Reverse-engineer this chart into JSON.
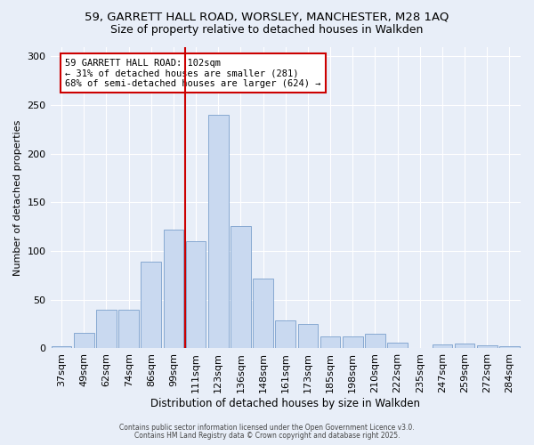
{
  "title_line1": "59, GARRETT HALL ROAD, WORSLEY, MANCHESTER, M28 1AQ",
  "title_line2": "Size of property relative to detached houses in Walkden",
  "xlabel": "Distribution of detached houses by size in Walkden",
  "ylabel": "Number of detached properties",
  "bar_labels": [
    "37sqm",
    "49sqm",
    "62sqm",
    "74sqm",
    "86sqm",
    "99sqm",
    "111sqm",
    "123sqm",
    "136sqm",
    "148sqm",
    "161sqm",
    "173sqm",
    "185sqm",
    "198sqm",
    "210sqm",
    "222sqm",
    "235sqm",
    "247sqm",
    "259sqm",
    "272sqm",
    "284sqm"
  ],
  "bar_values": [
    2,
    16,
    40,
    40,
    89,
    122,
    110,
    240,
    126,
    72,
    29,
    25,
    12,
    12,
    15,
    6,
    0,
    4,
    5,
    3,
    2
  ],
  "bar_color": "#c9d9f0",
  "bar_edge_color": "#7aa0cc",
  "vline_x": 5.5,
  "vline_color": "#cc0000",
  "annotation_text": "59 GARRETT HALL ROAD: 102sqm\n← 31% of detached houses are smaller (281)\n68% of semi-detached houses are larger (624) →",
  "annotation_box_color": "#ffffff",
  "annotation_box_edge_color": "#cc0000",
  "ylim": [
    0,
    310
  ],
  "yticks": [
    0,
    50,
    100,
    150,
    200,
    250,
    300
  ],
  "bg_color": "#e8eef8",
  "footer_line1": "Contains HM Land Registry data © Crown copyright and database right 2025.",
  "footer_line2": "Contains public sector information licensed under the Open Government Licence v3.0."
}
